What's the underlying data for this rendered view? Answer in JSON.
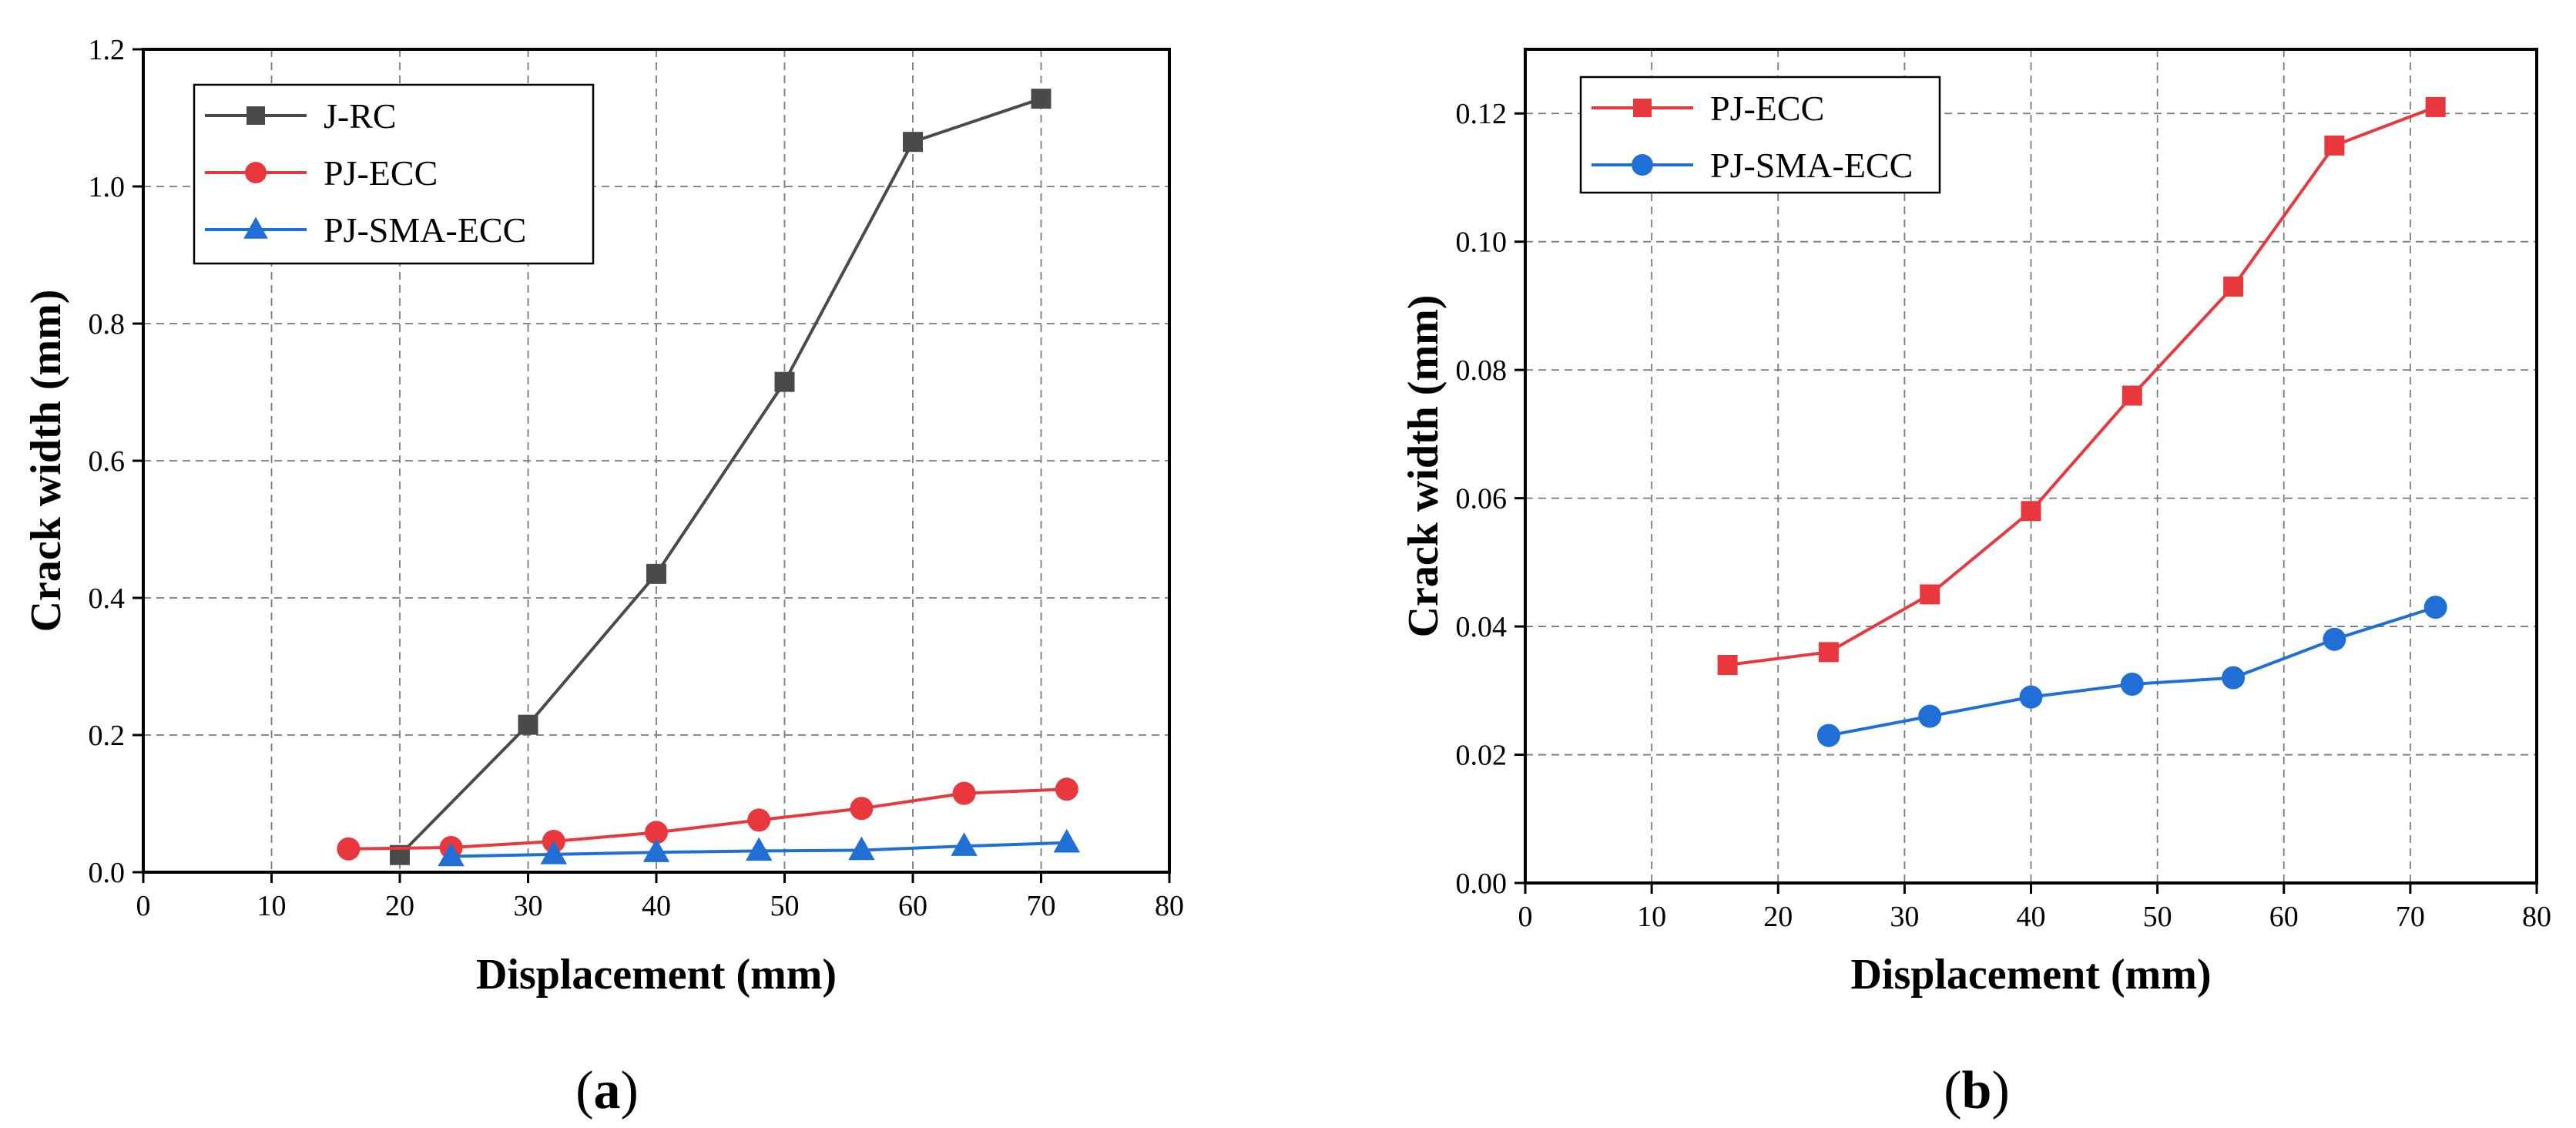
{
  "chart_data": [
    {
      "type": "line",
      "panel_label": "a",
      "xlabel": "Displacement (mm)",
      "ylabel": "Crack width (mm)",
      "xlim": [
        0,
        80
      ],
      "ylim": [
        0,
        1.2
      ],
      "x_ticks": [
        "0",
        "10",
        "20",
        "30",
        "40",
        "50",
        "60",
        "70",
        "80"
      ],
      "y_ticks": [
        "0.0",
        "0.2",
        "0.4",
        "0.6",
        "0.8",
        "1.0",
        "1.2"
      ],
      "grid": true,
      "legend_position": "top-left",
      "series": [
        {
          "name": "J-RC",
          "color": "#4a4a4a",
          "marker": "square",
          "x": [
            20,
            30,
            40,
            50,
            60,
            70
          ],
          "y": [
            0.025,
            0.215,
            0.435,
            0.715,
            1.065,
            1.128
          ]
        },
        {
          "name": "PJ-ECC",
          "color": "#e8383d",
          "marker": "circle",
          "x": [
            16,
            24,
            32,
            40,
            48,
            56,
            64,
            72
          ],
          "y": [
            0.034,
            0.036,
            0.045,
            0.058,
            0.076,
            0.093,
            0.115,
            0.121
          ]
        },
        {
          "name": "PJ-SMA-ECC",
          "color": "#1f6fd6",
          "marker": "triangle",
          "x": [
            24,
            32,
            40,
            48,
            56,
            64,
            72
          ],
          "y": [
            0.023,
            0.026,
            0.029,
            0.031,
            0.032,
            0.038,
            0.043
          ]
        }
      ]
    },
    {
      "type": "line",
      "panel_label": "b",
      "xlabel": "Displacement (mm)",
      "ylabel": "Crack width (mm)",
      "xlim": [
        0,
        80
      ],
      "ylim": [
        0,
        0.13
      ],
      "x_ticks": [
        "0",
        "10",
        "20",
        "30",
        "40",
        "50",
        "60",
        "70",
        "80"
      ],
      "y_ticks": [
        "0.00",
        "0.02",
        "0.04",
        "0.06",
        "0.08",
        "0.10",
        "0.12"
      ],
      "grid": true,
      "legend_position": "top-left",
      "series": [
        {
          "name": "PJ-ECC",
          "color": "#e8383d",
          "marker": "square",
          "x": [
            16,
            24,
            32,
            40,
            48,
            56,
            64,
            72
          ],
          "y": [
            0.034,
            0.036,
            0.045,
            0.058,
            0.076,
            0.093,
            0.115,
            0.121
          ]
        },
        {
          "name": "PJ-SMA-ECC",
          "color": "#1f6fd6",
          "marker": "circle",
          "x": [
            24,
            32,
            40,
            48,
            56,
            64,
            72
          ],
          "y": [
            0.023,
            0.026,
            0.029,
            0.031,
            0.032,
            0.038,
            0.043
          ]
        }
      ]
    }
  ]
}
